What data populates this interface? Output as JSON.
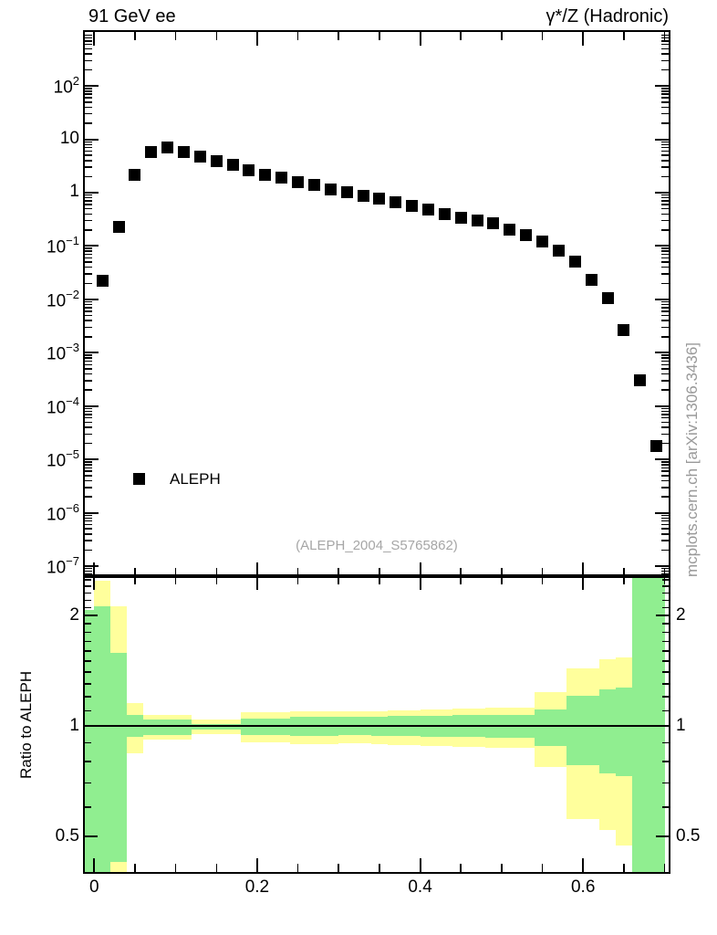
{
  "header": {
    "title_left": "91 GeV ee",
    "title_right": "γ*/Z (Hadronic)"
  },
  "legend": {
    "label": "ALEPH"
  },
  "watermark": "(ALEPH_2004_S5765862)",
  "side_credit": "mcplots.cern.ch [arXiv:1306.3436]",
  "ratio_ylabel": "Ratio to ALEPH",
  "colors": {
    "marker": "#000000",
    "frame": "#000000",
    "band_yellow": "#ffff9c",
    "band_green": "#90ee90",
    "watermark_gray": "#a6a6a6",
    "credit_gray": "#999999"
  },
  "chart_data": {
    "type": "scatter",
    "title": "91 GeV ee — γ*/Z (Hadronic)",
    "grid": false,
    "legend_position": "lower-left of main panel",
    "x_axis": {
      "range": [
        -0.0115,
        0.705
      ],
      "major_ticks": [
        0,
        0.2,
        0.4,
        0.6
      ],
      "tick_labels": [
        "0",
        "0.2",
        "0.4",
        "0.6"
      ],
      "minor_ticks": [
        0.05,
        0.1,
        0.15,
        0.25,
        0.3,
        0.35,
        0.45,
        0.5,
        0.55,
        0.65,
        0.7
      ]
    },
    "y_axis_main": {
      "scale": "log",
      "range": [
        6.5e-08,
        1030
      ],
      "major_ticks": [
        1e-07,
        1e-06,
        1e-05,
        0.0001,
        0.001,
        0.01,
        0.1,
        1,
        10,
        100
      ],
      "labels": [
        {
          "v": 100,
          "base": "10",
          "sup": "2"
        },
        {
          "v": 10,
          "base": "10",
          "sup": ""
        },
        {
          "v": 1,
          "base": "1",
          "sup": ""
        },
        {
          "v": 0.1,
          "base": "10",
          "sup": "−1"
        },
        {
          "v": 0.01,
          "base": "10",
          "sup": "−2"
        },
        {
          "v": 0.001,
          "base": "10",
          "sup": "−3"
        },
        {
          "v": 0.0001,
          "base": "10",
          "sup": "−4"
        },
        {
          "v": 1e-05,
          "base": "10",
          "sup": "−5"
        },
        {
          "v": 1e-06,
          "base": "10",
          "sup": "−6"
        },
        {
          "v": 1e-07,
          "base": "10",
          "sup": "−7"
        }
      ]
    },
    "y_axis_ratio": {
      "scale": "log",
      "range": [
        0.4,
        2.558
      ],
      "major_ticks": [
        0.5,
        1,
        2
      ],
      "labels": [
        {
          "v": 2,
          "text": "2"
        },
        {
          "v": 1,
          "text": "1"
        },
        {
          "v": 0.5,
          "text": "0.5"
        }
      ],
      "minor_ticks": [
        0.4,
        0.6,
        0.7,
        0.8,
        0.9,
        1.1,
        1.2,
        1.3,
        1.4,
        1.5,
        1.6,
        1.7,
        1.8,
        1.9,
        2.1,
        2.2,
        2.3,
        2.4,
        2.5
      ]
    },
    "series": [
      {
        "name": "ALEPH",
        "marker": "filled-square",
        "color": "#000000",
        "x": [
          0.01,
          0.03,
          0.05,
          0.07,
          0.09,
          0.11,
          0.13,
          0.15,
          0.17,
          0.19,
          0.21,
          0.23,
          0.25,
          0.27,
          0.29,
          0.31,
          0.33,
          0.35,
          0.37,
          0.39,
          0.41,
          0.43,
          0.45,
          0.47,
          0.49,
          0.51,
          0.53,
          0.55,
          0.57,
          0.59,
          0.61,
          0.63,
          0.65,
          0.67,
          0.69
        ],
        "y": [
          0.022,
          0.23,
          2.2,
          5.8,
          7.0,
          5.9,
          4.7,
          3.9,
          3.3,
          2.6,
          2.2,
          1.95,
          1.6,
          1.4,
          1.17,
          1.03,
          0.89,
          0.78,
          0.65,
          0.57,
          0.49,
          0.4,
          0.34,
          0.3,
          0.27,
          0.205,
          0.16,
          0.12,
          0.081,
          0.052,
          0.023,
          0.0105,
          0.0027,
          0.0003,
          1.8e-05
        ]
      }
    ],
    "ratio_bands": {
      "description": "MC uncertainty bands in ratio panel: yellow = outer band, green = inner band, around ratio 1",
      "bins": [
        {
          "x0": -0.0115,
          "x1": 0.0,
          "yellow": [
            0.4,
            2.07
          ],
          "green": [
            0.4,
            2.07
          ]
        },
        {
          "x0": 0.0,
          "x1": 0.02,
          "yellow": [
            0.4,
            2.48
          ],
          "green": [
            0.4,
            2.12
          ]
        },
        {
          "x0": 0.02,
          "x1": 0.04,
          "yellow": [
            0.4,
            2.12
          ],
          "green": [
            0.425,
            1.58
          ]
        },
        {
          "x0": 0.04,
          "x1": 0.06,
          "yellow": [
            0.842,
            1.154
          ],
          "green": [
            0.934,
            1.071
          ]
        },
        {
          "x0": 0.06,
          "x1": 0.08,
          "yellow": [
            0.918,
            1.071
          ],
          "green": [
            0.944,
            1.041
          ]
        },
        {
          "x0": 0.08,
          "x1": 0.1,
          "yellow": [
            0.918,
            1.071
          ],
          "green": [
            0.944,
            1.041
          ]
        },
        {
          "x0": 0.1,
          "x1": 0.12,
          "yellow": [
            0.918,
            1.071
          ],
          "green": [
            0.944,
            1.041
          ]
        },
        {
          "x0": 0.12,
          "x1": 0.14,
          "yellow": [
            0.95,
            1.041
          ],
          "green": [
            0.977,
            1.011
          ]
        },
        {
          "x0": 0.14,
          "x1": 0.16,
          "yellow": [
            0.95,
            1.041
          ],
          "green": [
            0.977,
            1.011
          ]
        },
        {
          "x0": 0.16,
          "x1": 0.18,
          "yellow": [
            0.95,
            1.041
          ],
          "green": [
            0.977,
            1.011
          ]
        },
        {
          "x0": 0.18,
          "x1": 0.2,
          "yellow": [
            0.902,
            1.09
          ],
          "green": [
            0.944,
            1.049
          ]
        },
        {
          "x0": 0.2,
          "x1": 0.22,
          "yellow": [
            0.902,
            1.09
          ],
          "green": [
            0.944,
            1.049
          ]
        },
        {
          "x0": 0.22,
          "x1": 0.24,
          "yellow": [
            0.902,
            1.09
          ],
          "green": [
            0.944,
            1.049
          ]
        },
        {
          "x0": 0.24,
          "x1": 0.26,
          "yellow": [
            0.892,
            1.096
          ],
          "green": [
            0.94,
            1.059
          ]
        },
        {
          "x0": 0.26,
          "x1": 0.28,
          "yellow": [
            0.892,
            1.096
          ],
          "green": [
            0.94,
            1.059
          ]
        },
        {
          "x0": 0.28,
          "x1": 0.3,
          "yellow": [
            0.892,
            1.096
          ],
          "green": [
            0.94,
            1.059
          ]
        },
        {
          "x0": 0.3,
          "x1": 0.32,
          "yellow": [
            0.895,
            1.093
          ],
          "green": [
            0.942,
            1.056
          ]
        },
        {
          "x0": 0.32,
          "x1": 0.34,
          "yellow": [
            0.895,
            1.093
          ],
          "green": [
            0.942,
            1.056
          ]
        },
        {
          "x0": 0.34,
          "x1": 0.36,
          "yellow": [
            0.89,
            1.098
          ],
          "green": [
            0.94,
            1.058
          ]
        },
        {
          "x0": 0.36,
          "x1": 0.38,
          "yellow": [
            0.887,
            1.104
          ],
          "green": [
            0.938,
            1.062
          ]
        },
        {
          "x0": 0.38,
          "x1": 0.4,
          "yellow": [
            0.887,
            1.104
          ],
          "green": [
            0.938,
            1.062
          ]
        },
        {
          "x0": 0.4,
          "x1": 0.42,
          "yellow": [
            0.88,
            1.11
          ],
          "green": [
            0.935,
            1.066
          ]
        },
        {
          "x0": 0.42,
          "x1": 0.44,
          "yellow": [
            0.88,
            1.11
          ],
          "green": [
            0.935,
            1.066
          ]
        },
        {
          "x0": 0.44,
          "x1": 0.46,
          "yellow": [
            0.875,
            1.115
          ],
          "green": [
            0.932,
            1.07
          ]
        },
        {
          "x0": 0.46,
          "x1": 0.48,
          "yellow": [
            0.875,
            1.115
          ],
          "green": [
            0.932,
            1.07
          ]
        },
        {
          "x0": 0.48,
          "x1": 0.5,
          "yellow": [
            0.87,
            1.12
          ],
          "green": [
            0.93,
            1.072
          ]
        },
        {
          "x0": 0.5,
          "x1": 0.52,
          "yellow": [
            0.87,
            1.12
          ],
          "green": [
            0.93,
            1.072
          ]
        },
        {
          "x0": 0.52,
          "x1": 0.54,
          "yellow": [
            0.87,
            1.12
          ],
          "green": [
            0.93,
            1.072
          ]
        },
        {
          "x0": 0.54,
          "x1": 0.56,
          "yellow": [
            0.773,
            1.236
          ],
          "green": [
            0.882,
            1.108
          ]
        },
        {
          "x0": 0.56,
          "x1": 0.58,
          "yellow": [
            0.773,
            1.236
          ],
          "green": [
            0.882,
            1.108
          ]
        },
        {
          "x0": 0.58,
          "x1": 0.6,
          "yellow": [
            0.557,
            1.435
          ],
          "green": [
            0.782,
            1.208
          ]
        },
        {
          "x0": 0.6,
          "x1": 0.62,
          "yellow": [
            0.557,
            1.435
          ],
          "green": [
            0.782,
            1.208
          ]
        },
        {
          "x0": 0.62,
          "x1": 0.64,
          "yellow": [
            0.521,
            1.519
          ],
          "green": [
            0.743,
            1.258
          ]
        },
        {
          "x0": 0.64,
          "x1": 0.66,
          "yellow": [
            0.473,
            1.536
          ],
          "green": [
            0.73,
            1.272
          ]
        },
        {
          "x0": 0.66,
          "x1": 0.7,
          "yellow": [
            0.38,
            2.56
          ],
          "green": [
            0.38,
            2.56
          ]
        }
      ]
    }
  }
}
